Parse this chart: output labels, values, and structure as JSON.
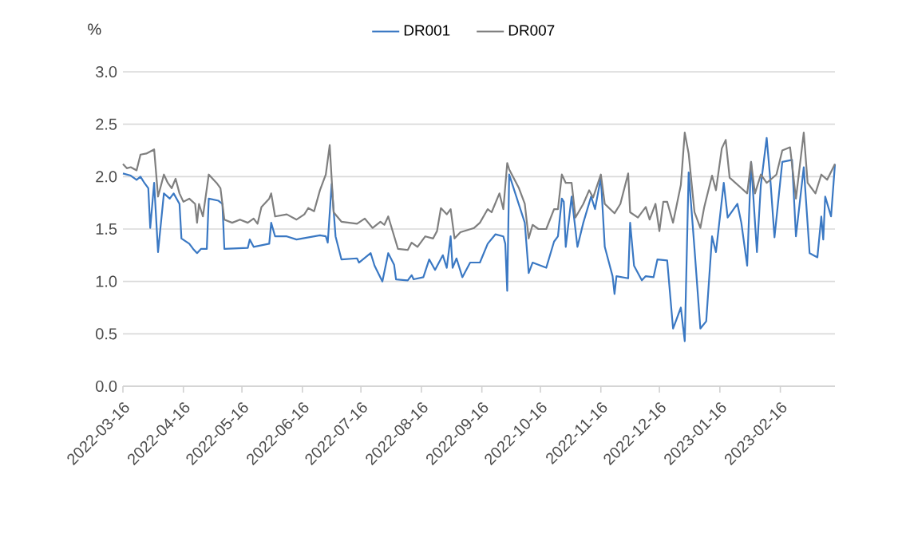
{
  "chart_data": {
    "type": "line",
    "ylabel": "%",
    "legend": "top",
    "grid": "y",
    "marker": "none",
    "line_style": "solid",
    "xlim": [
      "2022-03-16",
      "2023-03-16"
    ],
    "xticks": [
      "2022-03-16",
      "2022-04-16",
      "2022-05-16",
      "2022-06-16",
      "2022-07-16",
      "2022-08-16",
      "2022-09-16",
      "2022-10-16",
      "2022-11-16",
      "2022-12-16",
      "2023-01-16",
      "2023-02-16"
    ],
    "ylim": [
      0,
      3
    ],
    "yticks": [
      {
        "value": 0,
        "label": "0.0"
      },
      {
        "value": 0.5,
        "label": "0.5"
      },
      {
        "value": 1,
        "label": "1.0"
      },
      {
        "value": 1.5,
        "label": "1.5"
      },
      {
        "value": 2,
        "label": "2.0"
      },
      {
        "value": 2.5,
        "label": "2.5"
      },
      {
        "value": 3,
        "label": "3.0"
      }
    ],
    "series": [
      {
        "name": "DR001",
        "color": "#3a78c3",
        "x": [
          "2022-03-16",
          "2022-03-20",
          "2022-03-23",
          "2022-03-25",
          "2022-03-27",
          "2022-03-29",
          "2022-03-30",
          "2022-04-01",
          "2022-04-03",
          "2022-04-06",
          "2022-04-09",
          "2022-04-11",
          "2022-04-14",
          "2022-04-15",
          "2022-04-19",
          "2022-04-21",
          "2022-04-23",
          "2022-04-25",
          "2022-04-28",
          "2022-04-29",
          "2022-05-04",
          "2022-05-06",
          "2022-05-07",
          "2022-05-19",
          "2022-05-20",
          "2022-05-22",
          "2022-05-30",
          "2022-05-31",
          "2022-06-02",
          "2022-06-08",
          "2022-06-13",
          "2022-06-25",
          "2022-06-28",
          "2022-06-29",
          "2022-07-01",
          "2022-07-03",
          "2022-07-06",
          "2022-07-14",
          "2022-07-15",
          "2022-07-21",
          "2022-07-23",
          "2022-07-27",
          "2022-07-30",
          "2022-08-02",
          "2022-08-03",
          "2022-08-09",
          "2022-08-11",
          "2022-08-12",
          "2022-08-17",
          "2022-08-20",
          "2022-08-23",
          "2022-08-27",
          "2022-08-29",
          "2022-08-31",
          "2022-09-01",
          "2022-09-03",
          "2022-09-06",
          "2022-09-10",
          "2022-09-15",
          "2022-09-19",
          "2022-09-23",
          "2022-09-27",
          "2022-09-28",
          "2022-09-29",
          "2022-09-30",
          "2022-10-08",
          "2022-10-10",
          "2022-10-12",
          "2022-10-19",
          "2022-10-23",
          "2022-10-25",
          "2022-10-27",
          "2022-10-28",
          "2022-10-29",
          "2022-11-01",
          "2022-11-04",
          "2022-11-07",
          "2022-11-11",
          "2022-11-13",
          "2022-11-16",
          "2022-11-18",
          "2022-11-22",
          "2022-11-23",
          "2022-11-24",
          "2022-11-30",
          "2022-12-01",
          "2022-12-03",
          "2022-12-07",
          "2022-12-09",
          "2022-12-13",
          "2022-12-15",
          "2022-12-20",
          "2022-12-23",
          "2022-12-27",
          "2022-12-29",
          "2022-12-31",
          "2023-01-03",
          "2023-01-06",
          "2023-01-09",
          "2023-01-12",
          "2023-01-14",
          "2023-01-18",
          "2023-01-20",
          "2023-01-25",
          "2023-01-27",
          "2023-01-30",
          "2023-02-01",
          "2023-02-04",
          "2023-02-06",
          "2023-02-09",
          "2023-02-11",
          "2023-02-13",
          "2023-02-17",
          "2023-02-22",
          "2023-02-24",
          "2023-02-28",
          "2023-03-03",
          "2023-03-07",
          "2023-03-09",
          "2023-03-10",
          "2023-03-11",
          "2023-03-14",
          "2023-03-16"
        ],
        "values": [
          2.03,
          2.01,
          1.97,
          2.0,
          1.94,
          1.89,
          1.51,
          1.94,
          1.28,
          1.84,
          1.79,
          1.84,
          1.74,
          1.41,
          1.36,
          1.31,
          1.27,
          1.31,
          1.31,
          1.79,
          1.77,
          1.74,
          1.31,
          1.32,
          1.4,
          1.33,
          1.36,
          1.56,
          1.43,
          1.43,
          1.4,
          1.44,
          1.43,
          1.37,
          1.93,
          1.43,
          1.21,
          1.22,
          1.18,
          1.27,
          1.15,
          1.0,
          1.27,
          1.16,
          1.02,
          1.01,
          1.06,
          1.02,
          1.04,
          1.21,
          1.11,
          1.25,
          1.13,
          1.43,
          1.13,
          1.22,
          1.04,
          1.18,
          1.18,
          1.36,
          1.45,
          1.43,
          1.36,
          0.91,
          2.02,
          1.56,
          1.08,
          1.18,
          1.13,
          1.38,
          1.43,
          1.79,
          1.76,
          1.33,
          1.81,
          1.33,
          1.56,
          1.81,
          1.69,
          1.99,
          1.33,
          1.05,
          0.88,
          1.05,
          1.03,
          1.56,
          1.15,
          1.01,
          1.05,
          1.04,
          1.21,
          1.2,
          0.55,
          0.75,
          0.43,
          2.04,
          1.31,
          0.55,
          0.62,
          1.43,
          1.28,
          1.94,
          1.61,
          1.74,
          1.56,
          1.15,
          2.14,
          1.28,
          1.92,
          2.37,
          1.94,
          1.42,
          2.14,
          2.16,
          1.43,
          2.09,
          1.27,
          1.23,
          1.62,
          1.4,
          1.81,
          1.62,
          2.12
        ]
      },
      {
        "name": "DR007",
        "color": "#7f7f7f",
        "x": [
          "2022-03-16",
          "2022-03-18",
          "2022-03-20",
          "2022-03-23",
          "2022-03-25",
          "2022-03-28",
          "2022-04-01",
          "2022-04-03",
          "2022-04-06",
          "2022-04-08",
          "2022-04-10",
          "2022-04-12",
          "2022-04-14",
          "2022-04-16",
          "2022-04-19",
          "2022-04-22",
          "2022-04-23",
          "2022-04-24",
          "2022-04-26",
          "2022-04-29",
          "2022-05-03",
          "2022-05-05",
          "2022-05-07",
          "2022-05-11",
          "2022-05-15",
          "2022-05-19",
          "2022-05-22",
          "2022-05-24",
          "2022-05-26",
          "2022-05-30",
          "2022-05-31",
          "2022-06-02",
          "2022-06-08",
          "2022-06-13",
          "2022-06-17",
          "2022-06-19",
          "2022-06-22",
          "2022-06-25",
          "2022-06-28",
          "2022-06-30",
          "2022-07-02",
          "2022-07-06",
          "2022-07-14",
          "2022-07-18",
          "2022-07-22",
          "2022-07-26",
          "2022-07-28",
          "2022-07-30",
          "2022-08-04",
          "2022-08-09",
          "2022-08-11",
          "2022-08-14",
          "2022-08-18",
          "2022-08-22",
          "2022-08-24",
          "2022-08-26",
          "2022-08-29",
          "2022-08-31",
          "2022-09-02",
          "2022-09-05",
          "2022-09-12",
          "2022-09-15",
          "2022-09-19",
          "2022-09-21",
          "2022-09-25",
          "2022-09-27",
          "2022-09-29",
          "2022-09-30",
          "2022-10-05",
          "2022-10-08",
          "2022-10-10",
          "2022-10-12",
          "2022-10-15",
          "2022-10-19",
          "2022-10-23",
          "2022-10-25",
          "2022-10-27",
          "2022-10-29",
          "2022-11-01",
          "2022-11-03",
          "2022-11-07",
          "2022-11-10",
          "2022-11-12",
          "2022-11-16",
          "2022-11-18",
          "2022-11-23",
          "2022-11-26",
          "2022-11-30",
          "2022-12-01",
          "2022-12-05",
          "2022-12-09",
          "2022-12-11",
          "2022-12-14",
          "2022-12-16",
          "2022-12-18",
          "2022-12-20",
          "2022-12-23",
          "2022-12-27",
          "2022-12-29",
          "2022-12-31",
          "2023-01-03",
          "2023-01-06",
          "2023-01-08",
          "2023-01-12",
          "2023-01-14",
          "2023-01-17",
          "2023-01-19",
          "2023-01-21",
          "2023-01-27",
          "2023-01-30",
          "2023-02-01",
          "2023-02-03",
          "2023-02-06",
          "2023-02-09",
          "2023-02-14",
          "2023-02-17",
          "2023-02-21",
          "2023-02-24",
          "2023-02-28",
          "2023-03-02",
          "2023-03-06",
          "2023-03-09",
          "2023-03-12",
          "2023-03-16"
        ],
        "values": [
          2.12,
          2.08,
          2.09,
          2.06,
          2.21,
          2.22,
          2.26,
          1.81,
          2.02,
          1.94,
          1.89,
          1.98,
          1.84,
          1.76,
          1.79,
          1.74,
          1.56,
          1.74,
          1.62,
          2.02,
          1.94,
          1.89,
          1.59,
          1.56,
          1.59,
          1.56,
          1.6,
          1.55,
          1.71,
          1.79,
          1.84,
          1.62,
          1.64,
          1.59,
          1.64,
          1.7,
          1.67,
          1.87,
          2.02,
          2.3,
          1.66,
          1.57,
          1.55,
          1.6,
          1.51,
          1.57,
          1.54,
          1.62,
          1.31,
          1.3,
          1.37,
          1.33,
          1.43,
          1.41,
          1.48,
          1.7,
          1.64,
          1.69,
          1.41,
          1.47,
          1.51,
          1.56,
          1.69,
          1.66,
          1.84,
          1.69,
          2.13,
          2.07,
          1.89,
          1.74,
          1.41,
          1.54,
          1.5,
          1.5,
          1.69,
          1.69,
          2.02,
          1.94,
          1.94,
          1.61,
          1.74,
          1.87,
          1.8,
          2.02,
          1.74,
          1.65,
          1.74,
          2.03,
          1.66,
          1.61,
          1.71,
          1.59,
          1.74,
          1.48,
          1.76,
          1.76,
          1.56,
          1.92,
          2.42,
          2.22,
          1.66,
          1.51,
          1.71,
          2.01,
          1.87,
          2.27,
          2.35,
          1.99,
          1.89,
          1.84,
          2.14,
          1.84,
          2.02,
          1.94,
          2.02,
          2.25,
          2.28,
          1.79,
          2.42,
          1.94,
          1.84,
          2.02,
          1.97,
          2.12
        ]
      }
    ]
  }
}
